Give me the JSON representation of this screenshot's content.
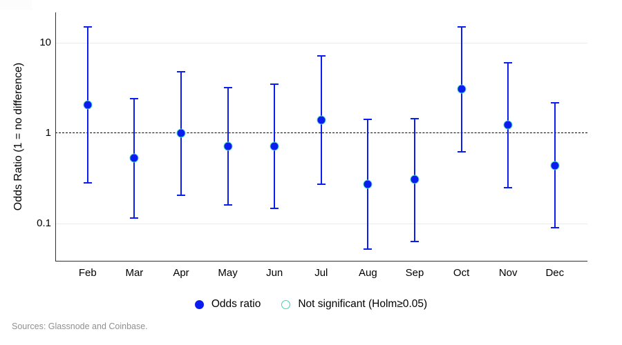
{
  "page": {
    "background": "#ffffff"
  },
  "colors": {
    "point": "#0b1cf0",
    "point_edge": "#56dcc4",
    "errorbar": "#0b1cf0",
    "not_significant": "#3fd0ae",
    "gridline": "#ebebeb",
    "axis": "#2f2f2f",
    "reference_line": "#000000",
    "source_text": "#8f8f8f"
  },
  "legend": {
    "items": [
      {
        "label": "Odds ratio",
        "marker": "filled-circle",
        "color": "#0b1cf0"
      },
      {
        "label": "Not significant (Holm≥0.05)",
        "marker": "open-circle",
        "color": "#3fd0ae"
      }
    ]
  },
  "footer": {
    "source_note": "Sources: Glassnode and Coinbase."
  },
  "chart_data": {
    "type": "scatter",
    "subtype": "error-bar-plot",
    "title": "",
    "xlabel": "",
    "ylabel": "Odds Ratio (1 = no difference)",
    "yscale": "log",
    "ylim": [
      0.039,
      21.7
    ],
    "yticks": [
      10,
      1,
      0.1
    ],
    "ytick_labels": [
      "10",
      "1",
      "0.1"
    ],
    "grid": "horizontal-at-major-ticks",
    "legend_position": "bottom-center",
    "reference_line": {
      "y": 1,
      "style": "dashed",
      "meaning": "no difference"
    },
    "categories": [
      "Feb",
      "Mar",
      "Apr",
      "May",
      "Jun",
      "Jul",
      "Aug",
      "Sep",
      "Oct",
      "Nov",
      "Dec"
    ],
    "series": [
      {
        "name": "Odds ratio",
        "points": [
          {
            "month": "Feb",
            "odds_ratio": 2.05,
            "ci_low": 0.28,
            "ci_high": 15.0,
            "significant": true
          },
          {
            "month": "Mar",
            "odds_ratio": 0.53,
            "ci_low": 0.115,
            "ci_high": 2.4,
            "significant": true
          },
          {
            "month": "Apr",
            "odds_ratio": 1.0,
            "ci_low": 0.205,
            "ci_high": 4.8,
            "significant": true
          },
          {
            "month": "May",
            "odds_ratio": 0.72,
            "ci_low": 0.16,
            "ci_high": 3.2,
            "significant": true
          },
          {
            "month": "Jun",
            "odds_ratio": 0.72,
            "ci_low": 0.148,
            "ci_high": 3.5,
            "significant": true
          },
          {
            "month": "Jul",
            "odds_ratio": 1.4,
            "ci_low": 0.27,
            "ci_high": 7.2,
            "significant": true
          },
          {
            "month": "Aug",
            "odds_ratio": 0.27,
            "ci_low": 0.052,
            "ci_high": 1.42,
            "significant": true
          },
          {
            "month": "Sep",
            "odds_ratio": 0.31,
            "ci_low": 0.063,
            "ci_high": 1.45,
            "significant": true
          },
          {
            "month": "Oct",
            "odds_ratio": 3.1,
            "ci_low": 0.62,
            "ci_high": 15.0,
            "significant": true
          },
          {
            "month": "Nov",
            "odds_ratio": 1.24,
            "ci_low": 0.25,
            "ci_high": 6.0,
            "significant": true
          },
          {
            "month": "Dec",
            "odds_ratio": 0.44,
            "ci_low": 0.09,
            "ci_high": 2.15,
            "significant": true
          }
        ]
      }
    ]
  }
}
